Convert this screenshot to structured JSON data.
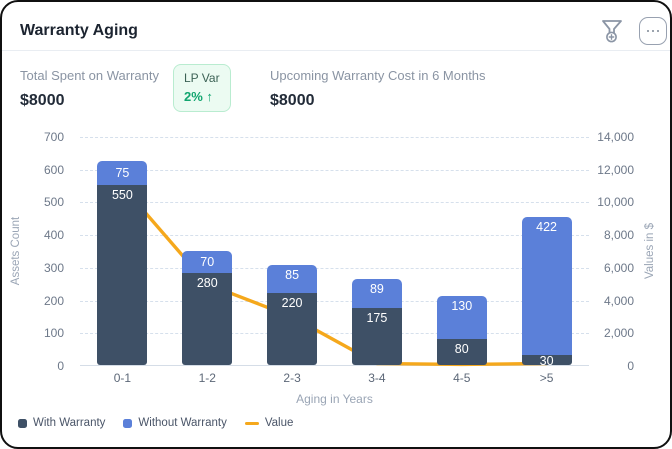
{
  "card": {
    "title": "Warranty Aging"
  },
  "header_icons": {
    "filter": "funnel-plus-icon",
    "menu": "ellipsis-icon"
  },
  "stats": {
    "total_spent": {
      "label": "Total Spent on Warranty",
      "value": "$8000"
    },
    "lp_var": {
      "label": "LP Var",
      "value": "2%",
      "arrow": "↑"
    },
    "upcoming": {
      "label": "Upcoming Warranty Cost in 6 Months",
      "value": "$8000"
    }
  },
  "colors": {
    "with_warranty": "#3E5066",
    "without_warranty": "#5B80D9",
    "value_line": "#F5A81C",
    "badge_green": "#12A56F",
    "badge_bg": "#ECFBF2"
  },
  "chart_data": {
    "type": "bar",
    "subtype": "stacked-bars-with-line-overlay",
    "categories": [
      "0-1",
      "1-2",
      "2-3",
      "3-4",
      "4-5",
      ">5"
    ],
    "series": [
      {
        "name": "With Warranty",
        "type": "bar",
        "axis": "left",
        "color": "#3E5066",
        "values": [
          550,
          280,
          220,
          175,
          80,
          30
        ]
      },
      {
        "name": "Without Warranty",
        "type": "bar",
        "axis": "left",
        "color": "#5B80D9",
        "values": [
          75,
          70,
          85,
          89,
          130,
          422
        ]
      },
      {
        "name": "Value",
        "type": "line",
        "axis": "right",
        "color": "#F5A81C",
        "estimated": true,
        "values": [
          11000,
          5000,
          3000,
          150,
          100,
          150
        ]
      }
    ],
    "xlabel": "Aging in Years",
    "ylabel_left": "Assets Count",
    "ylabel_right": "Values in $",
    "ylim_left": [
      0,
      700
    ],
    "ylim_right": [
      0,
      14000
    ],
    "yticks_left": [
      "0",
      "100",
      "200",
      "300",
      "400",
      "500",
      "600",
      "700"
    ],
    "yticks_right": [
      "0",
      "2,000",
      "4,000",
      "6,000",
      "8,000",
      "10,000",
      "12,000",
      "14,000"
    ],
    "grid": "horizontal-dashed",
    "legend_position": "bottom-left"
  }
}
